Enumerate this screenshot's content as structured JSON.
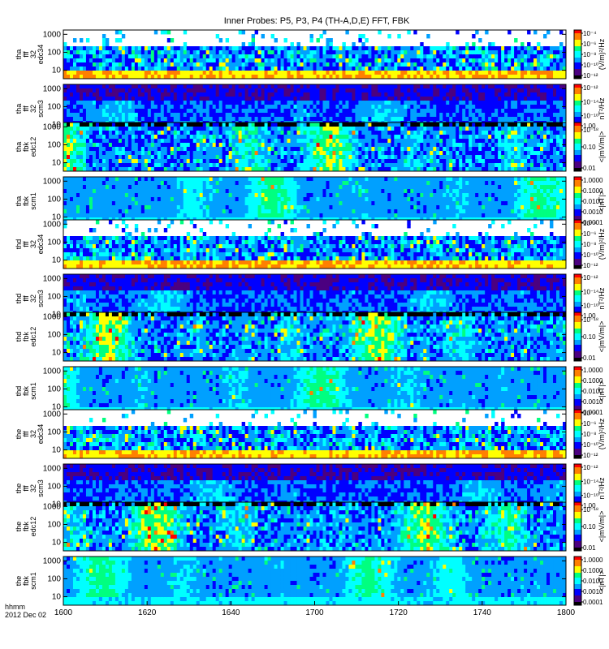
{
  "chart_data": {
    "type": "heatmap",
    "title": "Inner Probes: P5, P3, P4 (TH-A,D,E) FFT, FBK",
    "x_axis": {
      "tick_labels": [
        "1600",
        "1620",
        "1640",
        "1700",
        "1720",
        "1740",
        "1800"
      ],
      "label_lines": [
        "hhmm",
        "2012 Dec 02"
      ]
    },
    "panels": [
      {
        "id": "tha-fff32-edc34",
        "probe": "tha",
        "ylabel_lines": [
          "tha",
          "fff",
          "32",
          "edc34"
        ],
        "yticks": [
          "10",
          "100",
          "1000"
        ],
        "kind": "fff_e",
        "cbar_ticks": [
          "10⁻⁴",
          "10⁻⁶",
          "10⁻⁸",
          "10⁻¹⁰",
          "10⁻¹²"
        ],
        "cbar_label": "(V/m)²/Hz"
      },
      {
        "id": "tha-fff32-scm3",
        "probe": "tha",
        "ylabel_lines": [
          "tha",
          "fff",
          "32",
          "scm3"
        ],
        "yticks": [
          "10",
          "100",
          "1000"
        ],
        "kind": "fff_b",
        "cbar_ticks": [
          "10⁻¹²",
          "10⁻¹⁴",
          "10⁻¹⁶",
          "10⁻¹⁸"
        ],
        "cbar_label": "nT²/Hz"
      },
      {
        "id": "tha-fbk-edc12",
        "probe": "tha",
        "ylabel_lines": [
          "tha",
          "fbk",
          "edc12"
        ],
        "yticks": [
          "10",
          "100",
          "1000"
        ],
        "kind": "fbk_e",
        "cbar_ticks": [
          "1.00",
          "0.10",
          "0.01"
        ],
        "cbar_label": "<|mV/m|>"
      },
      {
        "id": "tha-fbk-scm1",
        "probe": "tha",
        "ylabel_lines": [
          "tha",
          "fbk",
          "scm1"
        ],
        "yticks": [
          "10",
          "100",
          "1000"
        ],
        "kind": "fbk_b",
        "cbar_ticks": [
          "1.0000",
          "0.1000",
          "0.0100",
          "0.0010",
          "0.0001"
        ],
        "cbar_label": "<|nT|>"
      },
      {
        "id": "thd-fff32-edc34",
        "probe": "thd",
        "ylabel_lines": [
          "thd",
          "fff",
          "32",
          "edc34"
        ],
        "yticks": [
          "10",
          "100",
          "1000"
        ],
        "kind": "fff_e",
        "cbar_ticks": [
          "10⁻⁴",
          "10⁻⁶",
          "10⁻⁸",
          "10⁻¹⁰",
          "10⁻¹²"
        ],
        "cbar_label": "(V/m)²/Hz"
      },
      {
        "id": "thd-fff32-scm3",
        "probe": "thd",
        "ylabel_lines": [
          "thd",
          "fff",
          "32",
          "scm3"
        ],
        "yticks": [
          "10",
          "100",
          "1000"
        ],
        "kind": "fff_b",
        "cbar_ticks": [
          "10⁻¹²",
          "10⁻¹⁴",
          "10⁻¹⁶",
          "10⁻¹⁸"
        ],
        "cbar_label": "nT²/Hz"
      },
      {
        "id": "thd-fbk-edc12",
        "probe": "thd",
        "ylabel_lines": [
          "thd",
          "fbk",
          "edc12"
        ],
        "yticks": [
          "10",
          "100",
          "1000"
        ],
        "kind": "fbk_e",
        "cbar_ticks": [
          "1.00",
          "0.10",
          "0.01"
        ],
        "cbar_label": "<|mV/m|>"
      },
      {
        "id": "thd-fbk-scm1",
        "probe": "thd",
        "ylabel_lines": [
          "thd",
          "fbk",
          "scm1"
        ],
        "yticks": [
          "10",
          "100",
          "1000"
        ],
        "kind": "fbk_b",
        "cbar_ticks": [
          "1.0000",
          "0.1000",
          "0.0100",
          "0.0010",
          "0.0001"
        ],
        "cbar_label": "<|nT|>"
      },
      {
        "id": "the-fff32-edc34",
        "probe": "the",
        "ylabel_lines": [
          "the",
          "fff",
          "32",
          "edc34"
        ],
        "yticks": [
          "10",
          "100",
          "1000"
        ],
        "kind": "fff_e",
        "cbar_ticks": [
          "10⁻⁴",
          "10⁻⁶",
          "10⁻⁸",
          "10⁻¹⁰",
          "10⁻¹²"
        ],
        "cbar_label": "(V/m)²/Hz"
      },
      {
        "id": "the-fff32-scm3",
        "probe": "the",
        "ylabel_lines": [
          "the",
          "fff",
          "32",
          "scm3"
        ],
        "yticks": [
          "10",
          "100",
          "1000"
        ],
        "kind": "fff_b",
        "cbar_ticks": [
          "10⁻¹²",
          "10⁻¹⁴",
          "10⁻¹⁶",
          "10⁻¹⁸"
        ],
        "cbar_label": "nT²/Hz"
      },
      {
        "id": "the-fbk-edc12",
        "probe": "the",
        "ylabel_lines": [
          "the",
          "fbk",
          "edc12"
        ],
        "yticks": [
          "10",
          "100",
          "1000"
        ],
        "kind": "fbk_e",
        "cbar_ticks": [
          "1.00",
          "0.10",
          "0.01"
        ],
        "cbar_label": "<|mV/m|>"
      },
      {
        "id": "the-fbk-scm1",
        "probe": "the",
        "ylabel_lines": [
          "the",
          "fbk",
          "scm1"
        ],
        "yticks": [
          "10",
          "100",
          "1000"
        ],
        "kind": "fbk_b",
        "cbar_ticks": [
          "1.0000",
          "0.1000",
          "0.0100",
          "0.0010",
          "0.0001"
        ],
        "cbar_label": "<|nT|>"
      }
    ],
    "colormap": [
      "#000000",
      "#4b0080",
      "#0000ff",
      "#00a0ff",
      "#00ffff",
      "#00ff80",
      "#ffff00",
      "#ff8000",
      "#ff0000"
    ]
  }
}
